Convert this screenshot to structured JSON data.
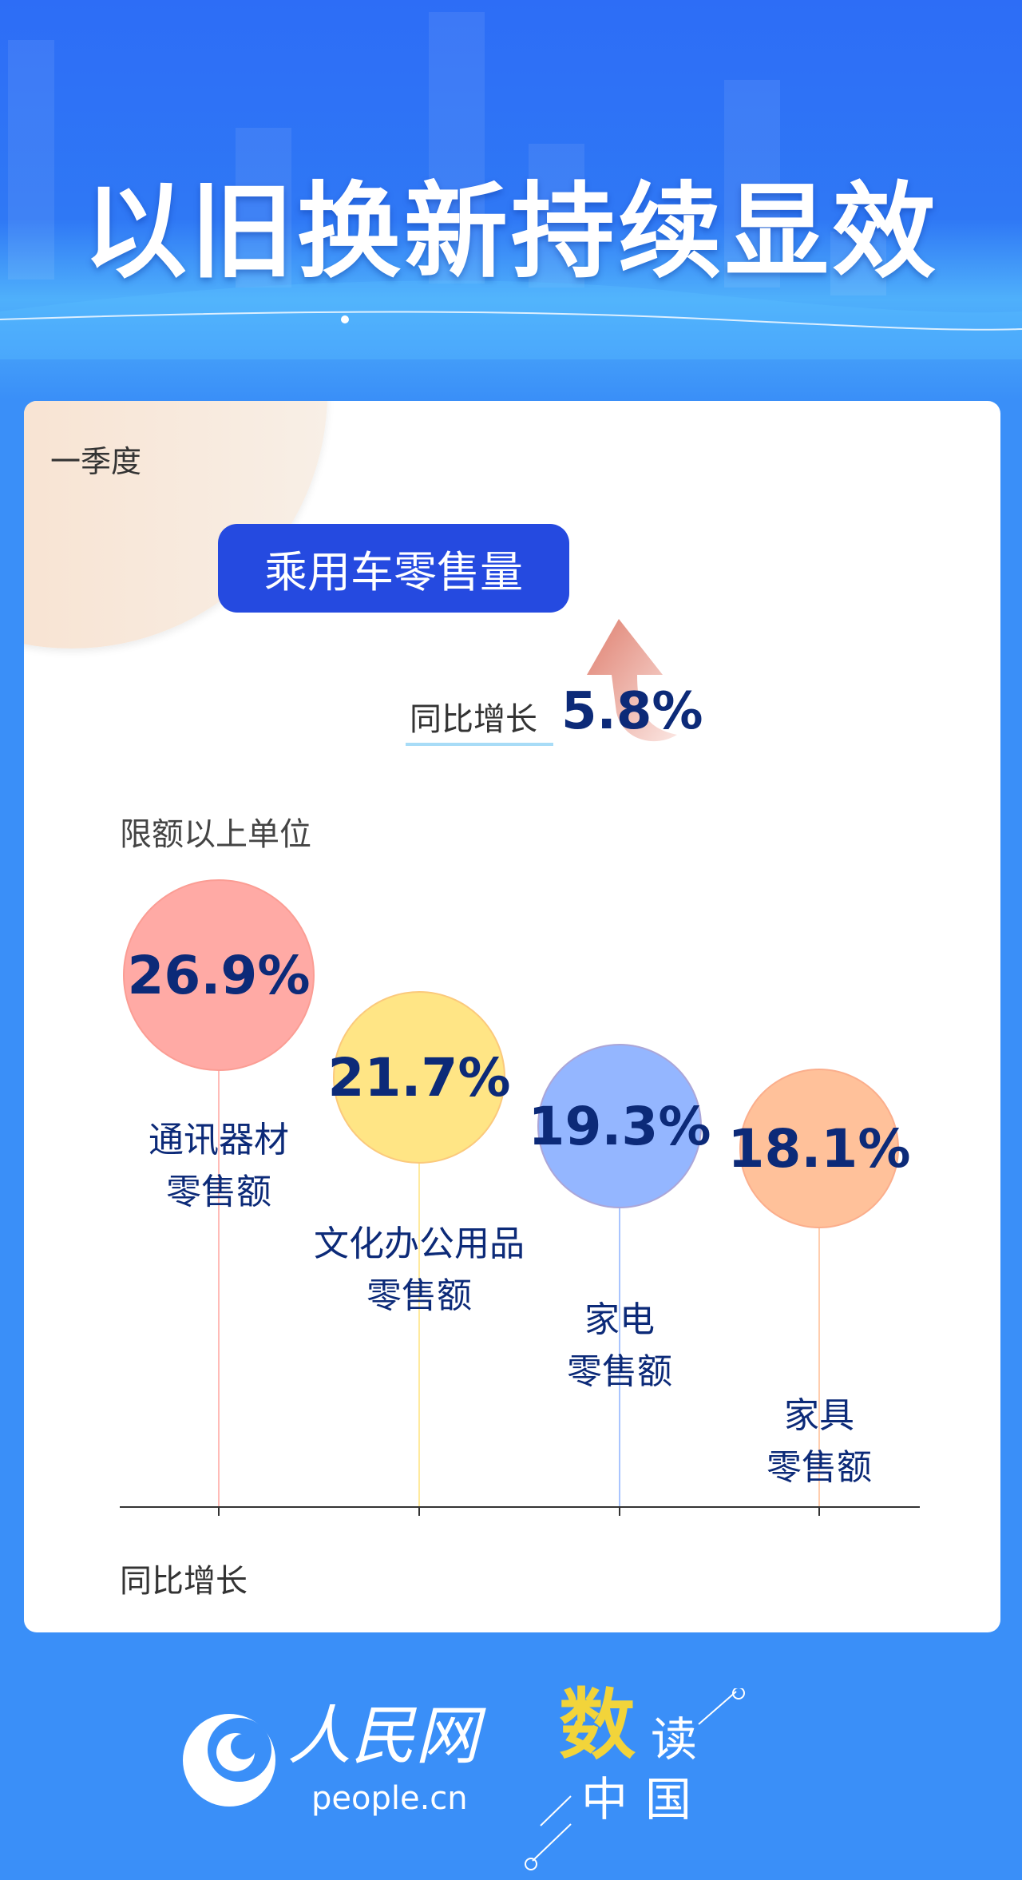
{
  "title": "以旧换新持续显效",
  "period": "一季度",
  "highlight": {
    "label": "乘用车零售量",
    "yoy_label": "同比增长",
    "value": "5.8%",
    "arrow_icon": "arrow-up-icon"
  },
  "section_label": "限额以上单位",
  "axis_label": "同比增长",
  "items": [
    {
      "value": "26.9%",
      "name_line1": "通讯器材",
      "name_line2": "零售额",
      "color": "#ffaaa5"
    },
    {
      "value": "21.7%",
      "name_line1": "文化办公用品",
      "name_line2": "零售额",
      "color": "#ffe585"
    },
    {
      "value": "19.3%",
      "name_line1": "家电",
      "name_line2": "零售额",
      "color": "#94b6ff"
    },
    {
      "value": "18.1%",
      "name_line1": "家具",
      "name_line2": "零售额",
      "color": "#ffc19a"
    }
  ],
  "footer": {
    "logo_text": "人民网",
    "logo_domain": "people.cn",
    "brand_1": "数",
    "brand_2": "读",
    "brand_3": "中",
    "brand_4": "国"
  }
}
